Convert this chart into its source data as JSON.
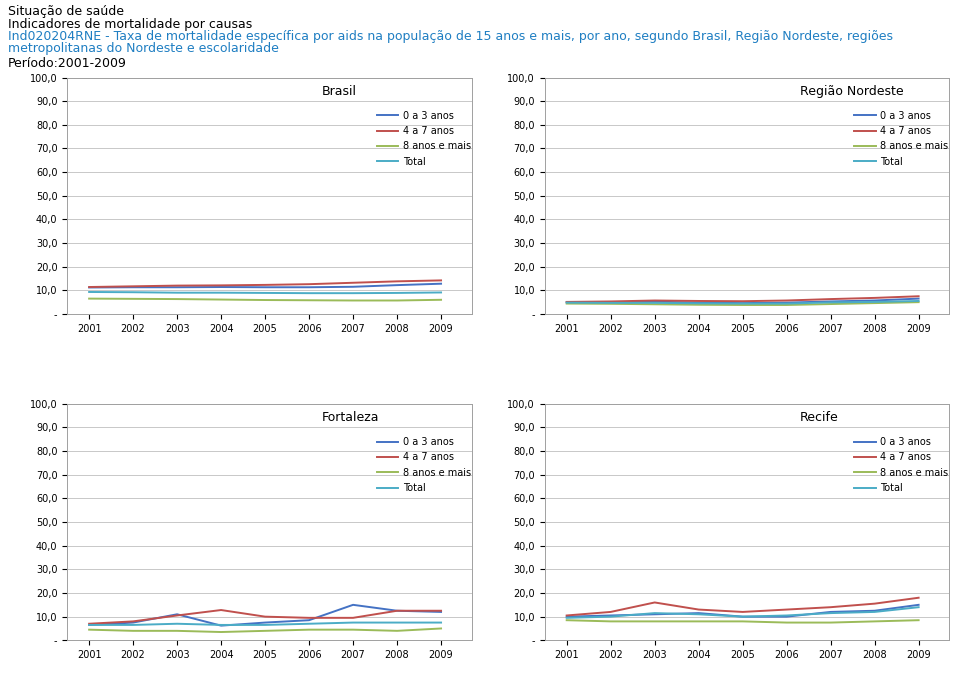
{
  "title_line1": "Situação de saúde",
  "title_line2": "Indicadores de mortalidade por causas",
  "title_line3a": "Ind020204RNE - Taxa de mortalidade específica por aids na população de 15 anos e mais, por ano, segundo Brasil, Região Nordeste, regiões",
  "title_line3b": "metropolitanas do Nordeste e escolaridade",
  "title_line4": "Período:2001-2009",
  "title_color": "#1F7EC2",
  "years": [
    2001,
    2002,
    2003,
    2004,
    2005,
    2006,
    2007,
    2008,
    2009
  ],
  "panels": [
    {
      "name": "Brasil",
      "data": {
        "0a3": [
          11.2,
          11.3,
          11.3,
          11.4,
          11.3,
          11.3,
          11.5,
          12.2,
          12.8
        ],
        "4a7": [
          11.4,
          11.7,
          12.0,
          12.1,
          12.3,
          12.6,
          13.2,
          13.8,
          14.2
        ],
        "8mais": [
          6.5,
          6.4,
          6.3,
          6.1,
          5.9,
          5.8,
          5.7,
          5.7,
          6.0
        ],
        "total": [
          9.3,
          9.2,
          9.0,
          9.0,
          8.9,
          8.8,
          8.8,
          8.9,
          9.1
        ]
      }
    },
    {
      "name": "Região Nordeste",
      "data": {
        "0a3": [
          5.0,
          5.0,
          5.2,
          4.8,
          4.6,
          4.8,
          5.3,
          5.7,
          6.5
        ],
        "4a7": [
          5.1,
          5.3,
          5.7,
          5.5,
          5.4,
          5.7,
          6.3,
          6.8,
          7.5
        ],
        "8mais": [
          4.4,
          4.3,
          4.1,
          3.9,
          3.8,
          3.8,
          4.2,
          4.6,
          5.0
        ],
        "total": [
          4.8,
          4.7,
          4.7,
          4.5,
          4.4,
          4.4,
          4.9,
          5.1,
          5.5
        ]
      }
    },
    {
      "name": "Fortaleza",
      "data": {
        "0a3": [
          6.5,
          7.5,
          11.0,
          6.2,
          7.5,
          8.5,
          15.0,
          12.5,
          12.0
        ],
        "4a7": [
          7.0,
          8.0,
          10.5,
          12.8,
          10.0,
          9.5,
          9.5,
          12.5,
          12.5
        ],
        "8mais": [
          4.5,
          4.0,
          4.0,
          3.5,
          4.0,
          4.5,
          4.5,
          4.0,
          5.0
        ],
        "total": [
          6.5,
          6.5,
          7.0,
          6.5,
          6.5,
          7.0,
          7.5,
          7.5,
          7.5
        ]
      }
    },
    {
      "name": "Recife",
      "data": {
        "0a3": [
          10.0,
          10.5,
          11.0,
          11.5,
          10.0,
          10.0,
          12.0,
          12.5,
          15.0
        ],
        "4a7": [
          10.5,
          12.0,
          16.0,
          13.0,
          12.0,
          13.0,
          14.0,
          15.5,
          18.0
        ],
        "8mais": [
          8.5,
          8.0,
          8.0,
          8.0,
          8.0,
          7.5,
          7.5,
          8.0,
          8.5
        ],
        "total": [
          9.5,
          10.0,
          11.5,
          11.0,
          10.0,
          10.5,
          11.5,
          12.0,
          14.0
        ]
      }
    }
  ],
  "colors": {
    "0a3": "#4472C4",
    "4a7": "#C0504D",
    "8mais": "#9BBB59",
    "total": "#4BACC6"
  },
  "legend_labels": {
    "0a3": "0 a 3 anos",
    "4a7": "4 a 7 anos",
    "8mais": "8 anos e mais",
    "total": "Total"
  },
  "ylim": [
    0,
    100
  ],
  "yticks": [
    0,
    10,
    20,
    30,
    40,
    50,
    60,
    70,
    80,
    90,
    100
  ],
  "ytick_labels": [
    "-",
    "10,0",
    "20,0",
    "30,0",
    "40,0",
    "50,0",
    "60,0",
    "70,0",
    "80,0",
    "90,0",
    "100,0"
  ],
  "background_color": "#ffffff",
  "panel_bg": "#ffffff",
  "grid_color": "#C8C8C8",
  "border_color": "#A0A0A0"
}
